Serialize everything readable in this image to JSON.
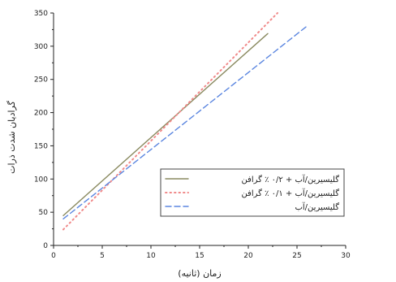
{
  "chart_data": {
    "type": "line",
    "title": "",
    "xlabel": "زمان (ثانیه)",
    "ylabel": "گرادیان شدت ذرات",
    "xlim": [
      0,
      30
    ],
    "ylim": [
      0,
      350
    ],
    "x_ticks": [
      0,
      5,
      10,
      15,
      20,
      25,
      30
    ],
    "y_ticks": [
      0,
      50,
      100,
      150,
      200,
      250,
      300,
      350
    ],
    "grid": false,
    "legend_position": "bottom-right",
    "series": [
      {
        "name": "گلیسیرین/آب + ۰/۲ ٪ گرافن",
        "line_style": "solid",
        "color": "#8a8a60",
        "x": [
          1,
          22
        ],
        "y": [
          45,
          319
        ]
      },
      {
        "name": "گلیسیرین/آب + ۰/۱ ٪ گرافن",
        "line_style": "dotted",
        "color": "#f08a8a",
        "x": [
          1,
          23
        ],
        "y": [
          24,
          350
        ]
      },
      {
        "name": "گلیسیرین/آب",
        "line_style": "dashed",
        "color": "#5b86e0",
        "x": [
          1,
          26
        ],
        "y": [
          40,
          330
        ]
      }
    ]
  }
}
